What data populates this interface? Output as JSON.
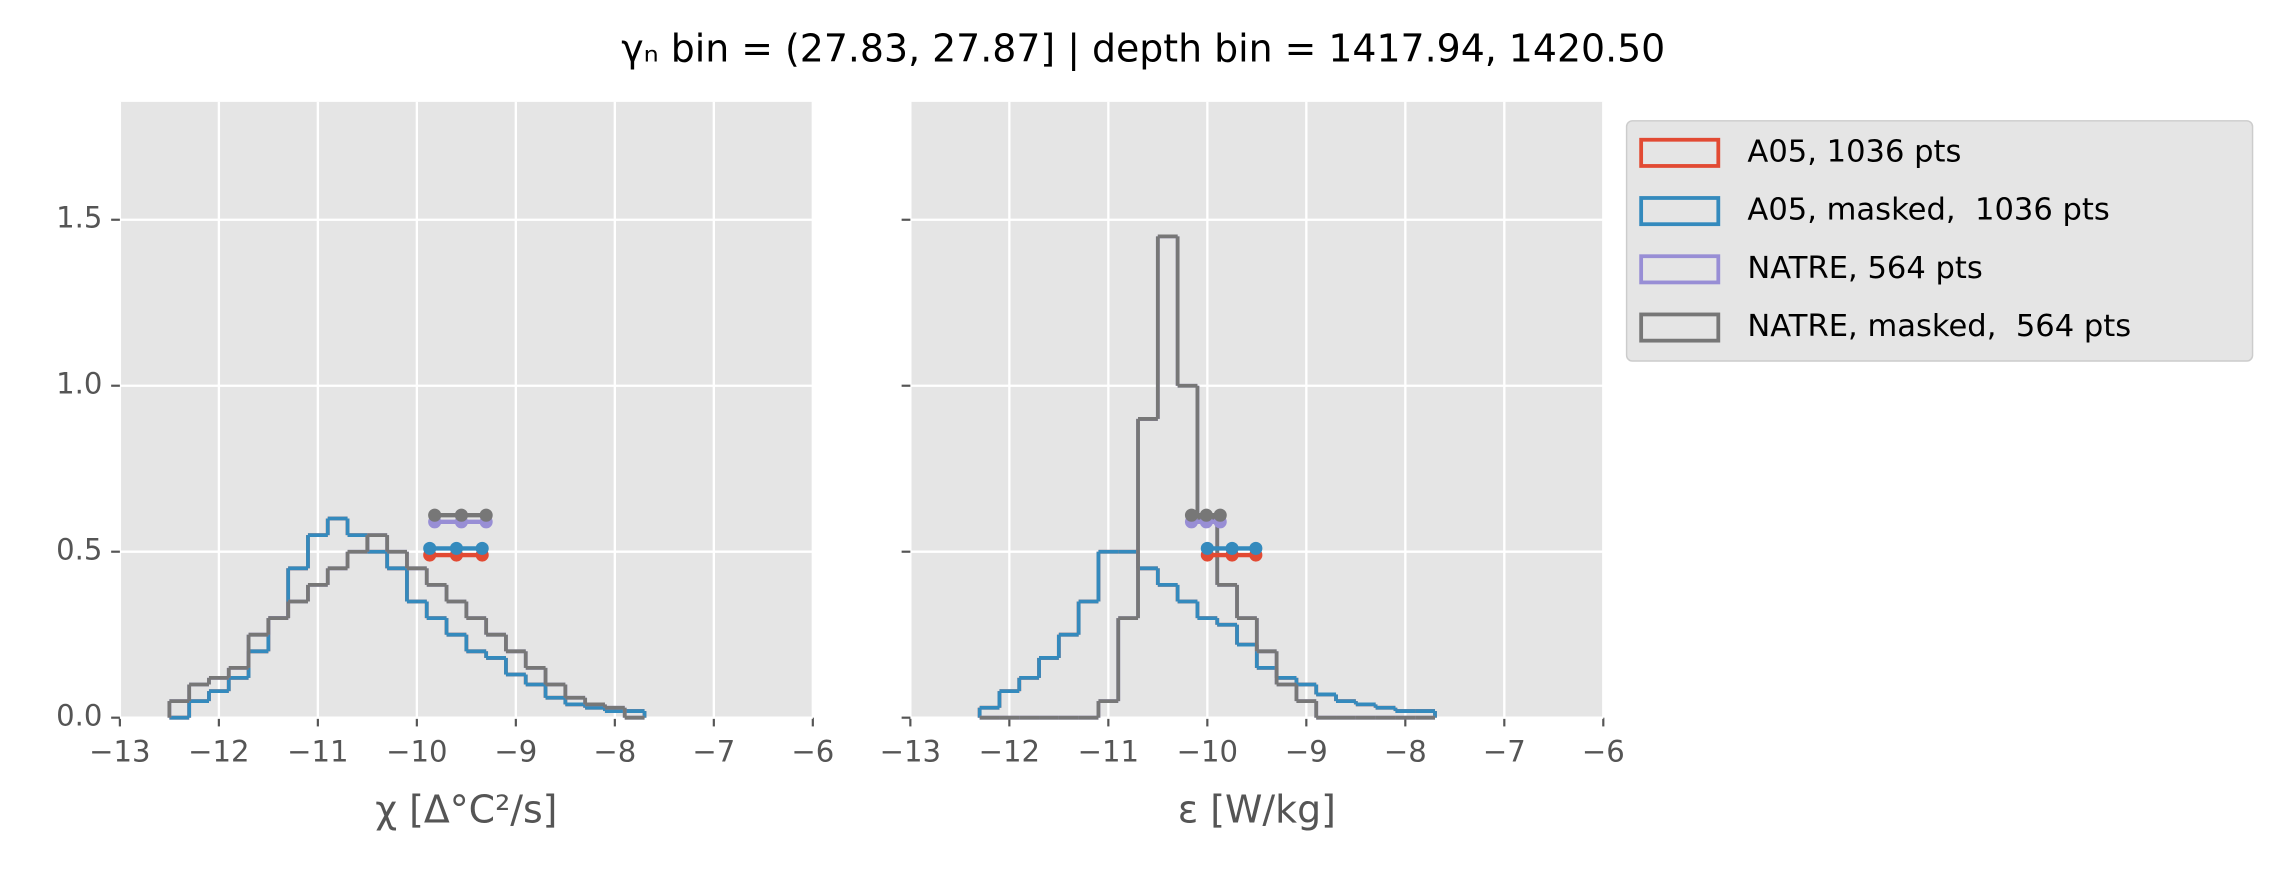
{
  "title": "γₙ bin = (27.83, 27.87] | depth bin = 1417.94, 1420.50",
  "chart_data": [
    {
      "type": "histogram",
      "xlabel": "χ [Δ°C²/s]",
      "xlim": [
        -13,
        -6
      ],
      "ylim": [
        0,
        1.855
      ],
      "xticks": [
        {
          "value": -13,
          "label": "−13"
        },
        {
          "value": -12,
          "label": "−12"
        },
        {
          "value": -11,
          "label": "−11"
        },
        {
          "value": -10,
          "label": "−10"
        },
        {
          "value": -9,
          "label": "−9"
        },
        {
          "value": -8,
          "label": "−8"
        },
        {
          "value": -7,
          "label": "−7"
        },
        {
          "value": -6,
          "label": "−6"
        }
      ],
      "yticks": [
        {
          "value": 0,
          "label": "0.0"
        },
        {
          "value": 0.5,
          "label": "0.5"
        },
        {
          "value": 1,
          "label": "1.0"
        },
        {
          "value": 1.5,
          "label": "1.5"
        }
      ],
      "grid": true,
      "bins": [
        -12.5,
        -12.3,
        -12.1,
        -11.9,
        -11.7,
        -11.5,
        -11.3,
        -11.1,
        -10.9,
        -10.7,
        -10.5,
        -10.3,
        -10.1,
        -9.9,
        -9.7,
        -9.5,
        -9.3,
        -9.1,
        -8.9,
        -8.7,
        -8.5,
        -8.3,
        -8.1,
        -7.9,
        -7.7
      ],
      "series": [
        {
          "color": "#E24A33",
          "values": [
            0,
            0.05,
            0.08,
            0.12,
            0.2,
            0.3,
            0.45,
            0.55,
            0.6,
            0.55,
            0.5,
            0.45,
            0.35,
            0.3,
            0.25,
            0.2,
            0.18,
            0.13,
            0.1,
            0.06,
            0.04,
            0.03,
            0.02,
            0.02
          ],
          "marker_x": [
            -9.87,
            -9.6,
            -9.34
          ],
          "marker_y": 0.49
        },
        {
          "color": "#348ABD",
          "values": [
            0,
            0.05,
            0.08,
            0.12,
            0.2,
            0.3,
            0.45,
            0.55,
            0.6,
            0.55,
            0.5,
            0.45,
            0.35,
            0.3,
            0.25,
            0.2,
            0.18,
            0.13,
            0.1,
            0.06,
            0.04,
            0.03,
            0.02,
            0.02
          ],
          "marker_x": [
            -9.87,
            -9.6,
            -9.34
          ],
          "marker_y": 0.51
        },
        {
          "color": "#988ED5",
          "values": [
            0.05,
            0.1,
            0.12,
            0.15,
            0.25,
            0.3,
            0.35,
            0.4,
            0.45,
            0.5,
            0.55,
            0.5,
            0.45,
            0.4,
            0.35,
            0.3,
            0.25,
            0.2,
            0.15,
            0.1,
            0.06,
            0.04,
            0.03,
            0
          ],
          "marker_x": [
            -9.82,
            -9.55,
            -9.3
          ],
          "marker_y": 0.59
        },
        {
          "color": "#777777",
          "values": [
            0.05,
            0.1,
            0.12,
            0.15,
            0.25,
            0.3,
            0.35,
            0.4,
            0.45,
            0.5,
            0.55,
            0.5,
            0.45,
            0.4,
            0.35,
            0.3,
            0.25,
            0.2,
            0.15,
            0.1,
            0.06,
            0.04,
            0.03,
            0
          ],
          "marker_x": [
            -9.82,
            -9.55,
            -9.3
          ],
          "marker_y": 0.61
        }
      ]
    },
    {
      "type": "histogram",
      "xlabel": "ε [W/kg]",
      "xlim": [
        -13,
        -6
      ],
      "ylim": [
        0,
        1.855
      ],
      "xticks": [
        {
          "value": -13,
          "label": "−13"
        },
        {
          "value": -12,
          "label": "−12"
        },
        {
          "value": -11,
          "label": "−11"
        },
        {
          "value": -10,
          "label": "−10"
        },
        {
          "value": -9,
          "label": "−9"
        },
        {
          "value": -8,
          "label": "−8"
        },
        {
          "value": -7,
          "label": "−7"
        },
        {
          "value": -6,
          "label": "−6"
        }
      ],
      "yticks": [
        0,
        0.5,
        1,
        1.5
      ],
      "yticklabels": false,
      "grid": true,
      "legend": "outside upper right",
      "bins": [
        -12.3,
        -12.1,
        -11.9,
        -11.7,
        -11.5,
        -11.3,
        -11.1,
        -10.9,
        -10.7,
        -10.5,
        -10.3,
        -10.1,
        -9.9,
        -9.7,
        -9.5,
        -9.3,
        -9.1,
        -8.9,
        -8.7,
        -8.5,
        -8.3,
        -8.1,
        -7.9,
        -7.7
      ],
      "series": [
        {
          "name": "A05, 1036 pts",
          "color": "#E24A33",
          "values": [
            0.03,
            0.08,
            0.12,
            0.18,
            0.25,
            0.35,
            0.5,
            0.5,
            0.45,
            0.4,
            0.35,
            0.3,
            0.28,
            0.22,
            0.15,
            0.12,
            0.1,
            0.07,
            0.05,
            0.04,
            0.03,
            0.02,
            0.02
          ],
          "marker_x": [
            -10.0,
            -9.75,
            -9.51
          ],
          "marker_y": 0.49
        },
        {
          "name": "A05, masked,  1036 pts",
          "color": "#348ABD",
          "values": [
            0.03,
            0.08,
            0.12,
            0.18,
            0.25,
            0.35,
            0.5,
            0.5,
            0.45,
            0.4,
            0.35,
            0.3,
            0.28,
            0.22,
            0.15,
            0.12,
            0.1,
            0.07,
            0.05,
            0.04,
            0.03,
            0.02,
            0.02
          ],
          "marker_x": [
            -10.0,
            -9.75,
            -9.51
          ],
          "marker_y": 0.51
        },
        {
          "name": "NATRE, 564 pts",
          "color": "#988ED5",
          "values": [
            0,
            0,
            0,
            0,
            0,
            0,
            0.05,
            0.3,
            0.9,
            1.45,
            1.0,
            0.6,
            0.4,
            0.3,
            0.2,
            0.1,
            0.05,
            0,
            0,
            0,
            0,
            0,
            0
          ],
          "marker_x": [
            -10.16,
            -10.01,
            -9.87
          ],
          "marker_y": 0.59
        },
        {
          "name": "NATRE, masked,  564 pts",
          "color": "#777777",
          "values": [
            0,
            0,
            0,
            0,
            0,
            0,
            0.05,
            0.3,
            0.9,
            1.45,
            1.0,
            0.6,
            0.4,
            0.3,
            0.2,
            0.1,
            0.05,
            0,
            0,
            0,
            0,
            0,
            0
          ],
          "marker_x": [
            -10.16,
            -10.01,
            -9.87
          ],
          "marker_y": 0.61
        }
      ]
    }
  ]
}
